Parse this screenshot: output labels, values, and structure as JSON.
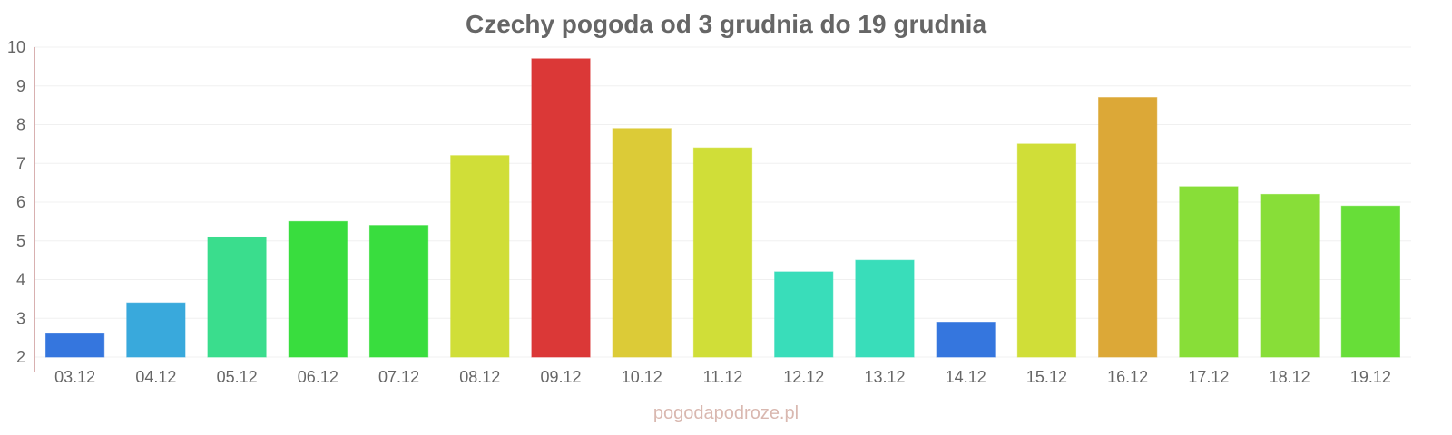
{
  "chart_data": {
    "type": "bar",
    "title": "Czechy pogoda od 3 grudnia do 19 grudnia",
    "xlabel": "",
    "ylabel": "",
    "ylim": [
      2,
      10
    ],
    "yticks": [
      "2",
      "3",
      "4",
      "5",
      "6",
      "7",
      "8",
      "9",
      "10"
    ],
    "grid": true,
    "categories": [
      "03.12",
      "04.12",
      "05.12",
      "06.12",
      "07.12",
      "08.12",
      "09.12",
      "10.12",
      "11.12",
      "12.12",
      "13.12",
      "14.12",
      "15.12",
      "16.12",
      "17.12",
      "18.12",
      "19.12"
    ],
    "values": [
      2.6,
      3.4,
      5.1,
      5.5,
      5.4,
      7.2,
      9.7,
      7.9,
      7.4,
      4.2,
      4.5,
      2.9,
      7.5,
      8.7,
      6.4,
      6.2,
      5.9
    ],
    "colors": [
      "#3173dd",
      "#35a7db",
      "#36dc8b",
      "#35dc3a",
      "#35dc3a",
      "#cfdd34",
      "#da3433",
      "#dbca33",
      "#cfdd34",
      "#35dcb9",
      "#35dcb9",
      "#3173dd",
      "#cfdd34",
      "#dba633",
      "#86dd34",
      "#86dd34",
      "#64dd34"
    ]
  },
  "watermark": "pogodapodroze.pl"
}
